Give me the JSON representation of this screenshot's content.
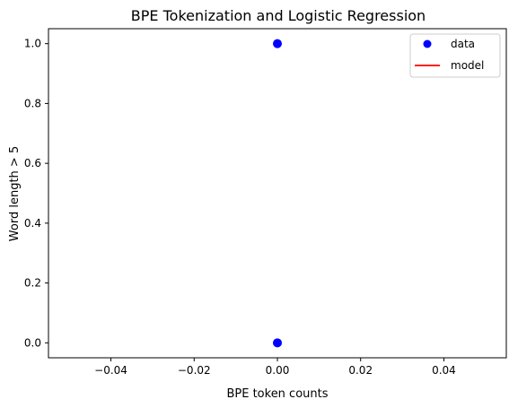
{
  "chart_data": {
    "type": "scatter",
    "title": "BPE Tokenization and Logistic Regression",
    "xlabel": "BPE token counts",
    "ylabel": "Word length > 5",
    "xlim": [
      -0.055,
      0.055
    ],
    "ylim": [
      -0.05,
      1.05
    ],
    "xticks": [
      -0.04,
      -0.02,
      0.0,
      0.02,
      0.04
    ],
    "xtick_labels": [
      "−0.04",
      "−0.02",
      "0.00",
      "0.02",
      "0.04"
    ],
    "yticks": [
      0.0,
      0.2,
      0.4,
      0.6,
      0.8,
      1.0
    ],
    "ytick_labels": [
      "0.0",
      "0.2",
      "0.4",
      "0.6",
      "0.8",
      "1.0"
    ],
    "grid": false,
    "legend_position": "top-right",
    "series": [
      {
        "name": "data",
        "kind": "scatter",
        "color": "#0000ff",
        "points": [
          {
            "x": 0.0,
            "y": 1.0
          },
          {
            "x": 0.0,
            "y": 0.0
          }
        ]
      },
      {
        "name": "model",
        "kind": "line",
        "color": "#ff0000",
        "points": []
      }
    ]
  }
}
